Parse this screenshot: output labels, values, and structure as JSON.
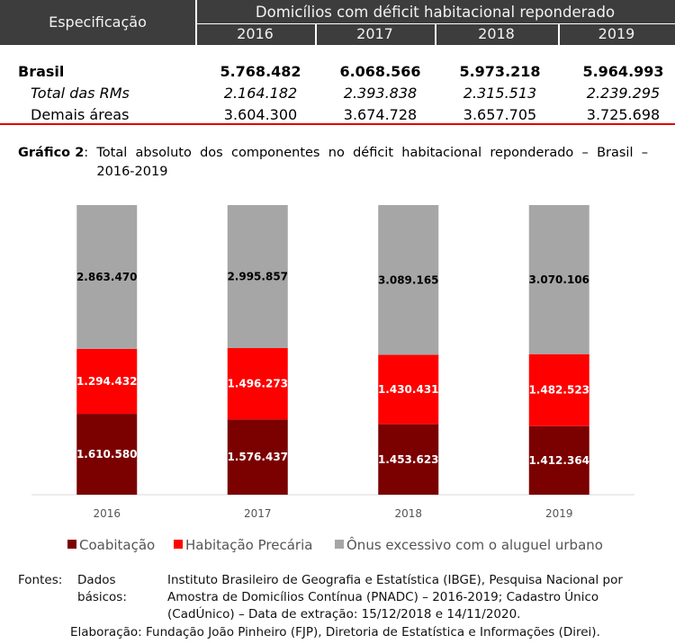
{
  "table": {
    "header": {
      "spec": "Especificação",
      "group": "Domicílios com déficit habitacional reponderado",
      "years": [
        "2016",
        "2017",
        "2018",
        "2019"
      ]
    },
    "rows": [
      [
        "Brasil",
        "5.768.482",
        "6.068.566",
        "5.973.218",
        "5.964.993"
      ],
      [
        "Total das RMs",
        "2.164.182",
        "2.393.838",
        "2.315.513",
        "2.239.295"
      ],
      [
        "Demais áreas",
        "3.604.300",
        "3.674.728",
        "3.657.705",
        "3.725.698"
      ]
    ]
  },
  "caption": {
    "label": "Gráfico 2",
    "text": "Total absoluto dos componentes no déficit habitacional reponderado – Brasil – 2016-2019"
  },
  "chart_data": {
    "type": "bar",
    "stacking": "percent",
    "categories": [
      "2016",
      "2017",
      "2018",
      "2019"
    ],
    "series": [
      {
        "name": "Coabitação",
        "color": "#7b0000",
        "values": [
          1610580,
          1576437,
          1453623,
          1412364
        ],
        "value_labels": [
          "1.610.580",
          "1.576.437",
          "1.453.623",
          "1.412.364"
        ]
      },
      {
        "name": "Habitação Precária",
        "color": "#ff0000",
        "values": [
          1294432,
          1496273,
          1430431,
          1482523
        ],
        "value_labels": [
          "1.294.432",
          "1.496.273",
          "1.430.431",
          "1.482.523"
        ]
      },
      {
        "name": "Ônus excessivo com o aluguel urbano",
        "color": "#a6a6a6",
        "values": [
          2863470,
          2995857,
          3089165,
          3070106
        ],
        "value_labels": [
          "2.863.470",
          "2.995.857",
          "3.089.165",
          "3.070.106"
        ]
      }
    ],
    "legend": "bottom"
  },
  "sources": {
    "label": "Fontes:",
    "basic_label": "Dados básicos:",
    "basic_lines": [
      "Instituto Brasileiro de Geografia e Estatística (IBGE), Pesquisa Nacional por",
      "Amostra de Domicílios Contínua (PNADC) – 2016-2019; Cadastro Único",
      "(CadÚnico) – Data de extração: 15/12/2018 e 14/11/2020."
    ],
    "elaboration": "Elaboração: Fundação João Pinheiro (FJP), Diretoria de Estatística e Informações (Direi)."
  }
}
